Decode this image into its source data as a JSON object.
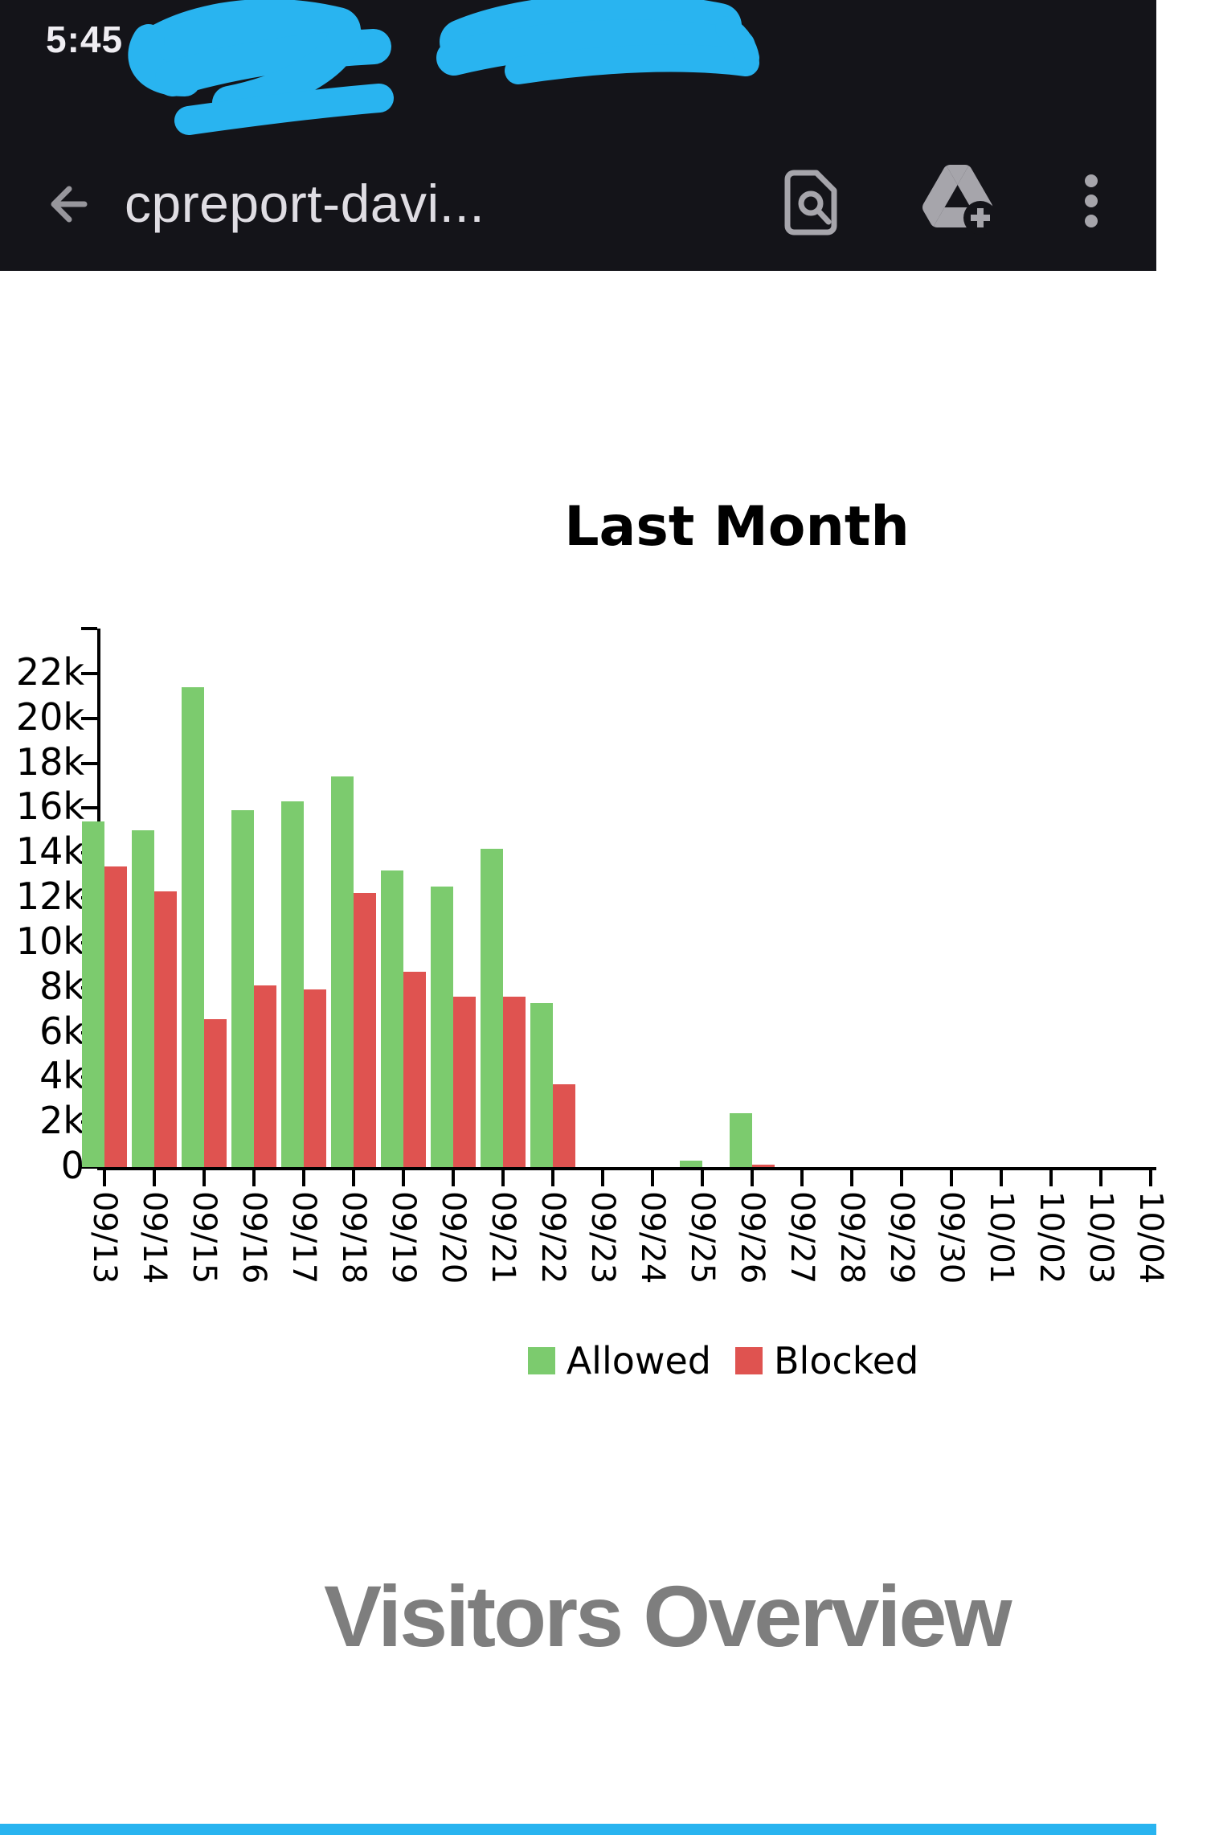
{
  "status_bar": {
    "time": "5:45"
  },
  "toolbar": {
    "title": "cpreport-davi...",
    "icons": [
      {
        "name": "back-arrow-icon"
      },
      {
        "name": "find-in-page-icon"
      },
      {
        "name": "add-to-drive-icon"
      },
      {
        "name": "overflow-menu-icon"
      }
    ]
  },
  "redaction_color": "#29B4F0",
  "chart_data": {
    "type": "bar",
    "title": "Last Month",
    "categories": [
      "09/13",
      "09/14",
      "09/15",
      "09/16",
      "09/17",
      "09/18",
      "09/19",
      "09/20",
      "09/21",
      "09/22",
      "09/23",
      "09/24",
      "09/25",
      "09/26",
      "09/27",
      "09/28",
      "09/29",
      "09/30",
      "10/01",
      "10/02",
      "10/03",
      "10/04"
    ],
    "series": [
      {
        "name": "Allowed",
        "color": "#7CCB6E",
        "values": [
          15400,
          15000,
          21400,
          15900,
          16300,
          17400,
          13200,
          12500,
          14200,
          7300,
          0,
          0,
          300,
          2400,
          0,
          0,
          0,
          0,
          0,
          0,
          0,
          0
        ]
      },
      {
        "name": "Blocked",
        "color": "#DF5350",
        "values": [
          13400,
          12300,
          6600,
          8100,
          7900,
          12200,
          8700,
          7600,
          7600,
          3700,
          0,
          0,
          0,
          100,
          0,
          0,
          0,
          0,
          0,
          0,
          0,
          0
        ]
      }
    ],
    "xlabel": "",
    "ylabel": "",
    "ylim": [
      0,
      24000
    ],
    "ytick_step": 2000,
    "ytick_labels": [
      "0",
      "2k",
      "4k",
      "6k",
      "8k",
      "10k",
      "12k",
      "14k",
      "16k",
      "18k",
      "20k",
      "22k"
    ],
    "grid": false,
    "legend_position": "bottom-center"
  },
  "footer": {
    "heading": "Visitors Overview"
  }
}
